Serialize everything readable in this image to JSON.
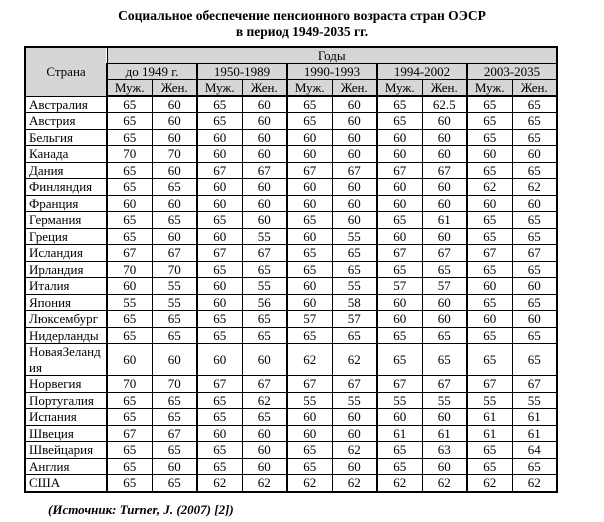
{
  "title": {
    "line1": "Социальное обеспечение пенсионного возраста стран ОЭСР",
    "line2": "в период 1949-2035 гг."
  },
  "table": {
    "country_header": "Страна",
    "years_header": "Годы",
    "periods": [
      "до 1949 г.",
      "1950-1989",
      "1990-1993",
      "1994-2002",
      "2003-2035"
    ],
    "gender_labels": {
      "male": "Муж.",
      "female": "Жен."
    },
    "rows": [
      {
        "country": "Австралия",
        "values": [
          "65",
          "60",
          "65",
          "60",
          "65",
          "60",
          "65",
          "62.5",
          "65",
          "65"
        ]
      },
      {
        "country": "Австрия",
        "values": [
          "65",
          "60",
          "65",
          "60",
          "65",
          "60",
          "65",
          "60",
          "65",
          "65"
        ]
      },
      {
        "country": "Бельгия",
        "values": [
          "65",
          "60",
          "60",
          "60",
          "60",
          "60",
          "60",
          "60",
          "65",
          "65"
        ]
      },
      {
        "country": "Канада",
        "values": [
          "70",
          "70",
          "60",
          "60",
          "60",
          "60",
          "60",
          "60",
          "60",
          "60"
        ]
      },
      {
        "country": "Дания",
        "values": [
          "65",
          "60",
          "67",
          "67",
          "67",
          "67",
          "67",
          "67",
          "65",
          "65"
        ]
      },
      {
        "country": "Финляндия",
        "values": [
          "65",
          "65",
          "60",
          "60",
          "60",
          "60",
          "60",
          "60",
          "62",
          "62"
        ]
      },
      {
        "country": "Франция",
        "values": [
          "60",
          "60",
          "60",
          "60",
          "60",
          "60",
          "60",
          "60",
          "60",
          "60"
        ]
      },
      {
        "country": "Германия",
        "values": [
          "65",
          "65",
          "65",
          "60",
          "65",
          "60",
          "65",
          "61",
          "65",
          "65"
        ]
      },
      {
        "country": "Греция",
        "values": [
          "65",
          "60",
          "60",
          "55",
          "60",
          "55",
          "60",
          "60",
          "65",
          "65"
        ]
      },
      {
        "country": "Исландия",
        "values": [
          "67",
          "67",
          "67",
          "67",
          "65",
          "65",
          "67",
          "67",
          "67",
          "67"
        ]
      },
      {
        "country": "Ирландия",
        "values": [
          "70",
          "70",
          "65",
          "65",
          "65",
          "65",
          "65",
          "65",
          "65",
          "65"
        ]
      },
      {
        "country": "Италия",
        "values": [
          "60",
          "55",
          "60",
          "55",
          "60",
          "55",
          "57",
          "57",
          "60",
          "60"
        ]
      },
      {
        "country": "Япония",
        "values": [
          "55",
          "55",
          "60",
          "56",
          "60",
          "58",
          "60",
          "60",
          "65",
          "65"
        ]
      },
      {
        "country": "Люксембург",
        "values": [
          "65",
          "65",
          "65",
          "65",
          "57",
          "57",
          "60",
          "60",
          "60",
          "60"
        ]
      },
      {
        "country": "Нидерланды",
        "values": [
          "65",
          "65",
          "65",
          "65",
          "65",
          "65",
          "65",
          "65",
          "65",
          "65"
        ]
      },
      {
        "country": "НоваяЗеландия",
        "values": [
          "60",
          "60",
          "60",
          "60",
          "62",
          "62",
          "65",
          "65",
          "65",
          "65"
        ]
      },
      {
        "country": "Норвегия",
        "values": [
          "70",
          "70",
          "67",
          "67",
          "67",
          "67",
          "67",
          "67",
          "67",
          "67"
        ]
      },
      {
        "country": "Португалия",
        "values": [
          "65",
          "65",
          "65",
          "62",
          "55",
          "55",
          "55",
          "55",
          "55",
          "55"
        ]
      },
      {
        "country": "Испания",
        "values": [
          "65",
          "65",
          "65",
          "65",
          "60",
          "60",
          "60",
          "60",
          "61",
          "61"
        ]
      },
      {
        "country": "Швеция",
        "values": [
          "67",
          "67",
          "60",
          "60",
          "60",
          "60",
          "61",
          "61",
          "61",
          "61"
        ]
      },
      {
        "country": "Швейцария",
        "values": [
          "65",
          "65",
          "65",
          "60",
          "65",
          "62",
          "65",
          "63",
          "65",
          "64"
        ]
      },
      {
        "country": "Англия",
        "values": [
          "65",
          "60",
          "65",
          "60",
          "65",
          "60",
          "65",
          "60",
          "65",
          "65"
        ]
      },
      {
        "country": "США",
        "values": [
          "65",
          "65",
          "62",
          "62",
          "62",
          "62",
          "62",
          "62",
          "62",
          "62"
        ]
      }
    ]
  },
  "footer": {
    "source": "(Источник: Turner, J. (2007) [2])"
  },
  "colors": {
    "header_bg": "#d6d6d6",
    "border": "#000000",
    "text": "#000000"
  }
}
